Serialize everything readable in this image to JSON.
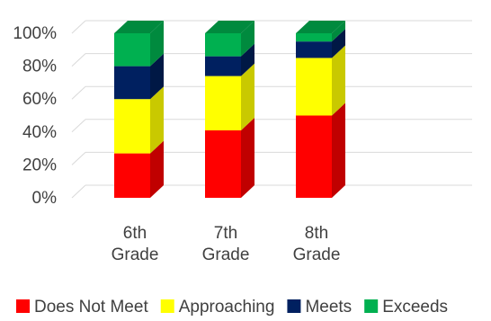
{
  "chart_data": {
    "type": "bar",
    "stacked": true,
    "three_d": true,
    "categories": [
      [
        "6th",
        "Grade"
      ],
      [
        "7th",
        "Grade"
      ],
      [
        "8th",
        "Grade"
      ]
    ],
    "series": [
      {
        "name": "Does Not Meet",
        "values": [
          27,
          41,
          50
        ],
        "color": "#ff0000",
        "side_color": "#c00000"
      },
      {
        "name": "Approaching",
        "values": [
          33,
          33,
          35
        ],
        "color": "#ffff00",
        "side_color": "#c9c900"
      },
      {
        "name": "Meets",
        "values": [
          20,
          12,
          10
        ],
        "color": "#002060",
        "side_color": "#001845"
      },
      {
        "name": "Exceeds",
        "values": [
          20,
          14,
          5
        ],
        "color": "#00b050",
        "side_color": "#008a3e"
      }
    ],
    "ylim": [
      0,
      100
    ],
    "y_ticks": [
      0,
      20,
      40,
      60,
      80,
      100
    ],
    "y_tick_format": "percent",
    "grid": true,
    "legend_position": "bottom"
  }
}
